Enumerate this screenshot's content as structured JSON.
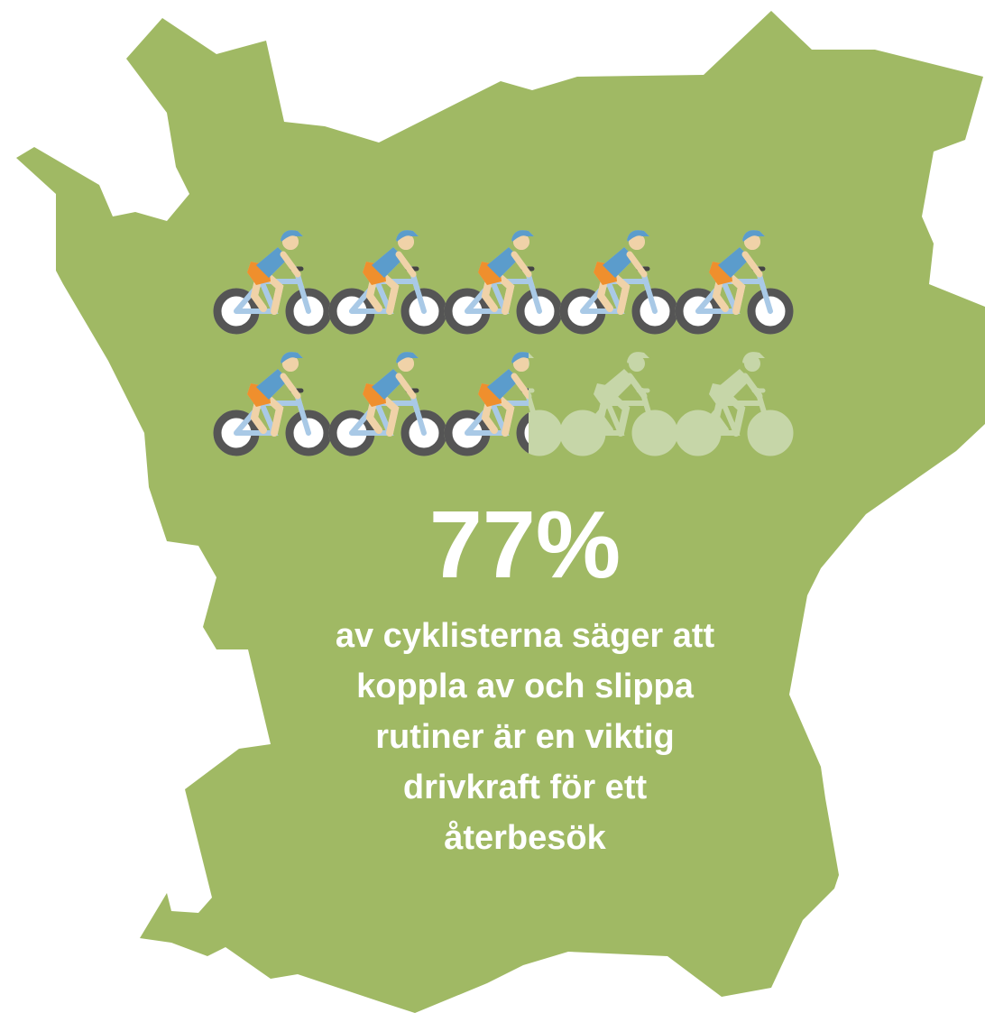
{
  "chart_data": {
    "type": "pictogram",
    "value": 77,
    "value_label": "77%",
    "color": "#a0b964",
    "text_lines": [
      "av cyklisterna säger att",
      "koppla av och slippa",
      "rutiner är en viktig",
      "drivkraft för ett",
      "återbesök"
    ]
  }
}
